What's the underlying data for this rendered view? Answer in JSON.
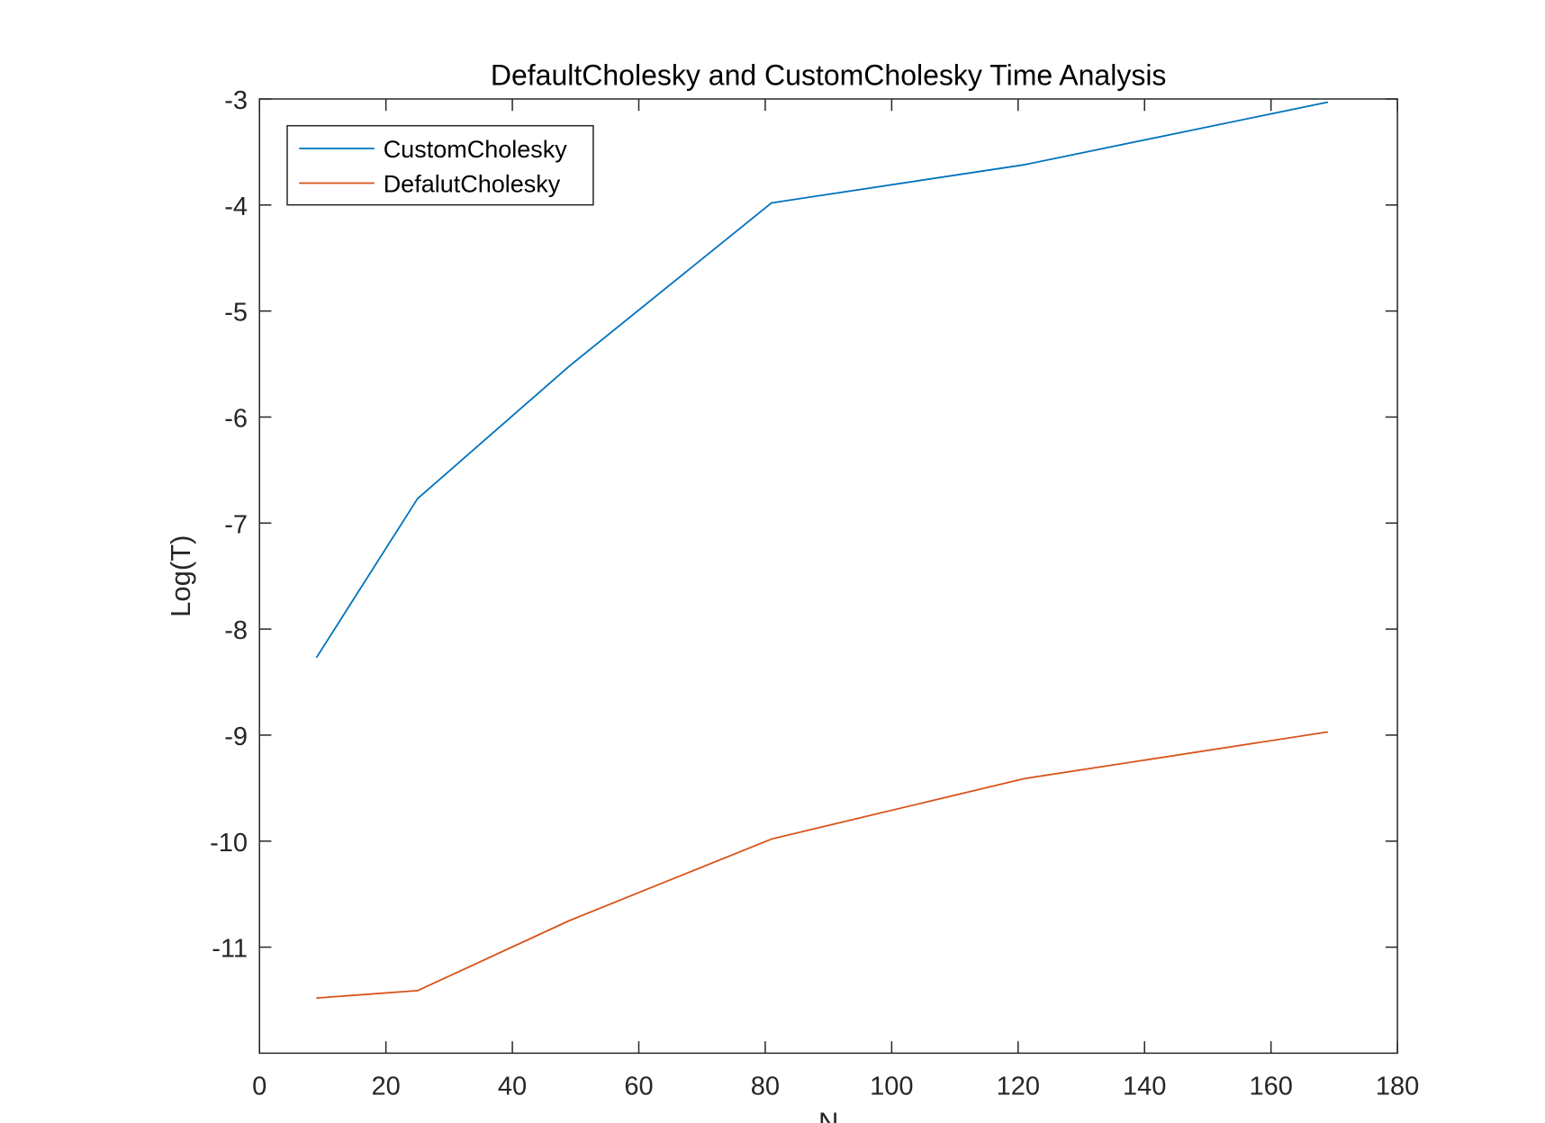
{
  "chart_data": {
    "type": "line",
    "title": "DefaultCholesky and CustomCholesky Time Analysis",
    "xlabel": "N",
    "ylabel": "Log(T)",
    "xlim": [
      0,
      180
    ],
    "ylim": [
      -12,
      -3
    ],
    "xticks": [
      0,
      20,
      40,
      60,
      80,
      100,
      120,
      140,
      160,
      180
    ],
    "yticks": [
      -3,
      -4,
      -5,
      -6,
      -7,
      -8,
      -9,
      -10,
      -11
    ],
    "grid": false,
    "legend_position": "top-left",
    "x": [
      9,
      25,
      49,
      81,
      121,
      169
    ],
    "series": [
      {
        "name": "CustomCholesky",
        "color": "#0072BD",
        "values": [
          -8.27,
          -6.77,
          -5.52,
          -3.98,
          -3.62,
          -3.03
        ]
      },
      {
        "name": "DefalutCholesky",
        "color": "#D95319",
        "values": [
          -11.48,
          -11.41,
          -10.75,
          -9.98,
          -9.41,
          -8.97
        ]
      }
    ]
  }
}
